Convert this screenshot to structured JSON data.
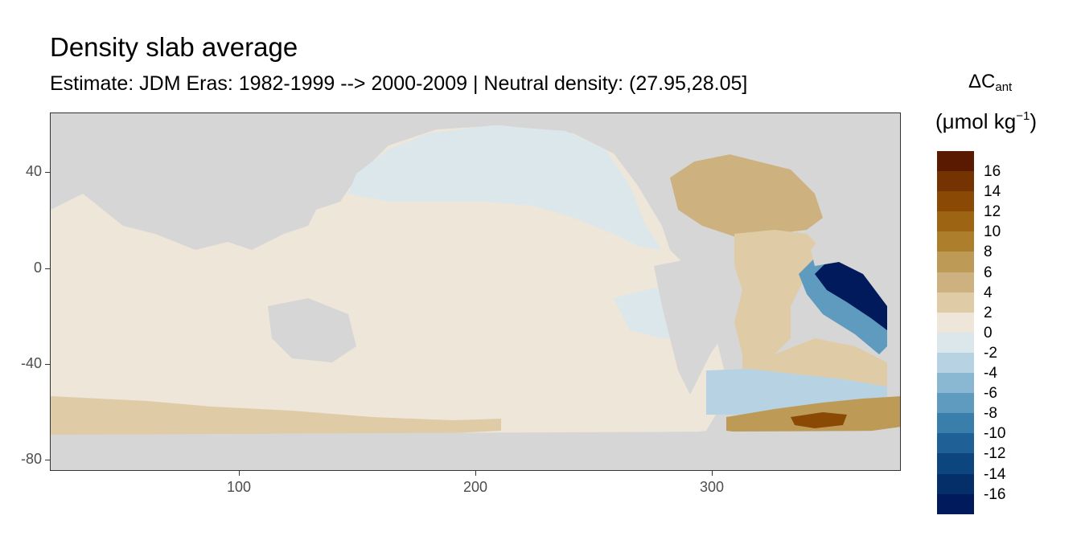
{
  "header": {
    "title": "Density slab average",
    "subtitle": "Estimate: JDM Eras: 1982-1999 --> 2000-2009 | Neutral density: (27.95,28.05]"
  },
  "axes": {
    "x_ticks": [
      "100",
      "200",
      "300"
    ],
    "y_ticks": [
      "40",
      "0",
      "-40",
      "-80"
    ],
    "x_range": [
      20,
      380
    ],
    "y_range": [
      -85,
      65
    ]
  },
  "legend": {
    "title_main": "ΔC",
    "title_sub": "ant",
    "unit_prefix": "(μmol kg",
    "unit_sup": "−1",
    "unit_suffix": ")",
    "labels": [
      "16",
      "14",
      "12",
      "10",
      "8",
      "6",
      "4",
      "2",
      "0",
      "-2",
      "-4",
      "-6",
      "-8",
      "-10",
      "-12",
      "-14",
      "-16"
    ],
    "colors": [
      "#5a1a02",
      "#743300",
      "#8a4a06",
      "#9c6413",
      "#ad7f2c",
      "#bd9a55",
      "#cdb280",
      "#dfcca7",
      "#ede6d9",
      "#dce7ec",
      "#b7d2e2",
      "#8ab7d2",
      "#5f9bbf",
      "#3a7eab",
      "#1f6196",
      "#0d457f",
      "#052f69",
      "#001a5c"
    ]
  },
  "map_colors": {
    "land": "#d6d6d6",
    "ocean_near_zero": "#ede6d9",
    "slight_negative": "#dce7ec"
  }
}
